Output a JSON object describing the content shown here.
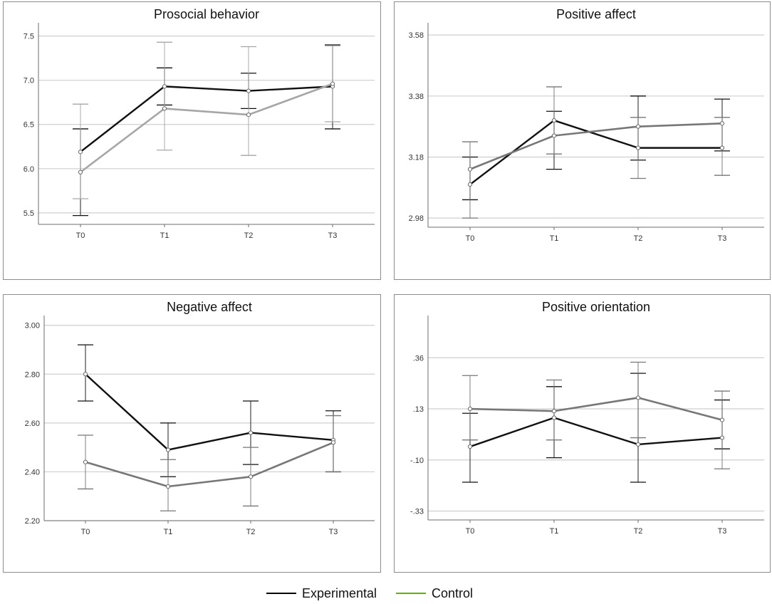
{
  "chart_data": [
    {
      "type": "line",
      "title": "Prosocial behavior",
      "categories": [
        "T0",
        "T1",
        "T2",
        "T3"
      ],
      "ylim": [
        5.37,
        7.65
      ],
      "yticks": [
        5.5,
        6.0,
        6.5,
        7.0,
        7.5
      ],
      "ytick_labels": [
        "5.5",
        "6.0",
        "6.5",
        "7.0",
        "7.5"
      ],
      "series": [
        {
          "name": "Experimental",
          "values": [
            6.19,
            6.93,
            6.88,
            6.93
          ],
          "lower": [
            5.47,
            6.72,
            6.68,
            6.45
          ],
          "upper": [
            6.45,
            7.14,
            7.08,
            7.4
          ]
        },
        {
          "name": "Control",
          "values": [
            5.96,
            6.68,
            6.61,
            6.96
          ],
          "lower": [
            5.66,
            6.21,
            6.15,
            6.53
          ],
          "upper": [
            6.73,
            7.43,
            7.38,
            7.39
          ]
        }
      ]
    },
    {
      "type": "line",
      "title": "Positive affect",
      "categories": [
        "T0",
        "T1",
        "T2",
        "T3"
      ],
      "ylim": [
        2.95,
        3.62
      ],
      "yticks": [
        2.98,
        3.18,
        3.38,
        3.58
      ],
      "ytick_labels": [
        "2.98",
        "3.18",
        "3.38",
        "3.58"
      ],
      "series": [
        {
          "name": "Experimental",
          "values": [
            3.09,
            3.3,
            3.21,
            3.21
          ],
          "lower": [
            3.04,
            3.14,
            3.17,
            3.2
          ],
          "upper": [
            3.18,
            3.33,
            3.38,
            3.37
          ]
        },
        {
          "name": "Control",
          "values": [
            3.14,
            3.25,
            3.28,
            3.29
          ],
          "lower": [
            2.98,
            3.19,
            3.11,
            3.12
          ],
          "upper": [
            3.23,
            3.41,
            3.31,
            3.31
          ]
        }
      ]
    },
    {
      "type": "line",
      "title": "Negative affect",
      "categories": [
        "T0",
        "T1",
        "T2",
        "T3"
      ],
      "ylim": [
        2.2,
        3.04
      ],
      "yticks": [
        2.2,
        2.4,
        2.6,
        2.8,
        3.0
      ],
      "ytick_labels": [
        "2.20",
        "2.40",
        "2.60",
        "2.80",
        "3.00"
      ],
      "series": [
        {
          "name": "Experimental",
          "values": [
            2.8,
            2.49,
            2.56,
            2.53
          ],
          "lower": [
            2.69,
            2.38,
            2.43,
            2.4
          ],
          "upper": [
            2.92,
            2.6,
            2.69,
            2.65
          ]
        },
        {
          "name": "Control",
          "values": [
            2.44,
            2.34,
            2.38,
            2.52
          ],
          "lower": [
            2.33,
            2.24,
            2.26,
            2.4
          ],
          "upper": [
            2.55,
            2.45,
            2.5,
            2.63
          ]
        }
      ]
    },
    {
      "type": "line",
      "title": "Positive orientation",
      "categories": [
        "T0",
        "T1",
        "T2",
        "T3"
      ],
      "ylim": [
        -0.37,
        0.55
      ],
      "yticks": [
        -0.33,
        -0.1,
        0.13,
        0.36
      ],
      "ytick_labels": [
        "-.33",
        "-.10",
        ".13",
        ".36"
      ],
      "series": [
        {
          "name": "Experimental",
          "values": [
            -0.04,
            0.09,
            -0.03,
            0.0
          ],
          "lower": [
            -0.2,
            -0.09,
            -0.2,
            -0.05
          ],
          "upper": [
            0.11,
            0.23,
            0.29,
            0.17
          ]
        },
        {
          "name": "Control",
          "values": [
            0.13,
            0.12,
            0.18,
            0.08
          ],
          "lower": [
            -0.01,
            -0.01,
            0.0,
            -0.14
          ],
          "upper": [
            0.28,
            0.26,
            0.34,
            0.21
          ]
        }
      ]
    }
  ],
  "legend": {
    "items": [
      {
        "label": "Experimental",
        "color": "#000000"
      },
      {
        "label": "Control",
        "color": "#6aaa2a"
      }
    ]
  },
  "colors": {
    "experimental_line": "#111111",
    "control_line": "#777777",
    "control_line_light": "#a6a6a6",
    "gridline": "#cfcfcf",
    "frame": "#8c8c8c",
    "axis": "#6e6e6e"
  }
}
